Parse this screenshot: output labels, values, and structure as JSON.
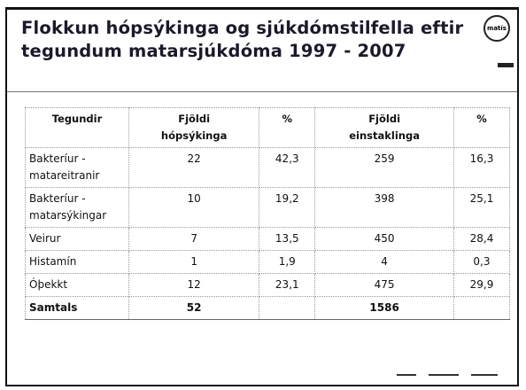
{
  "header": {
    "title_lines": [
      "Flokkun hópsýkinga og sjúkdómstilfella eftir",
      "tegundum matarsjúkdóma 1997 - 2007"
    ],
    "logo": "matís"
  },
  "table": {
    "columns": [
      [
        "Tegundir"
      ],
      [
        "Fjöldi",
        "hópsýkinga"
      ],
      [
        "%"
      ],
      [
        "Fjöldi",
        "einstaklinga"
      ],
      [
        "%"
      ]
    ],
    "rows": [
      [
        [
          "Bakteríur -",
          "matareitranir"
        ],
        "22",
        "42,3",
        "259",
        "16,3"
      ],
      [
        [
          "Bakteríur -",
          "matarsýkingar"
        ],
        "10",
        "19,2",
        "398",
        "25,1"
      ],
      [
        [
          "Veirur"
        ],
        "7",
        "13,5",
        "450",
        "28,4"
      ],
      [
        [
          "Histamín"
        ],
        "1",
        "1,9",
        "4",
        "0,3"
      ],
      [
        [
          "Óþekkt"
        ],
        "12",
        "23,1",
        "475",
        "29,9"
      ],
      [
        [
          "Samtals"
        ],
        "52",
        "",
        "1586",
        ""
      ]
    ]
  }
}
